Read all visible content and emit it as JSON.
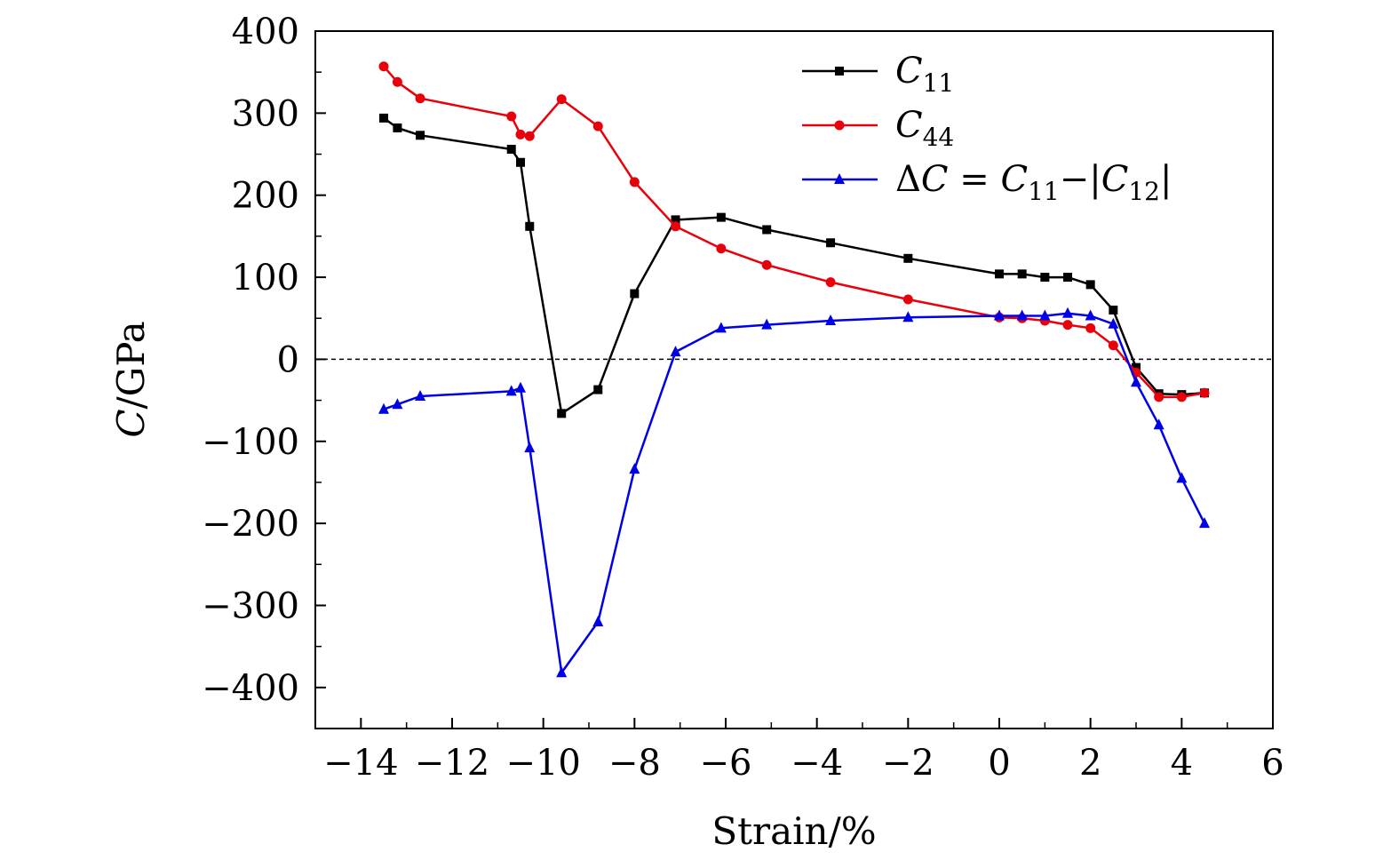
{
  "chart_data": {
    "type": "line",
    "title": "",
    "xlabel": "Strain/%",
    "ylabel": "C/GPa",
    "xlim": [
      -15,
      6
    ],
    "ylim": [
      -450,
      400
    ],
    "xticks": [
      -14,
      -12,
      -10,
      -8,
      -6,
      -4,
      -2,
      0,
      2,
      4,
      6
    ],
    "yticks": [
      400,
      300,
      200,
      100,
      0,
      -100,
      -200,
      -300,
      -400
    ],
    "xtick_labels": [
      "−14",
      "−12",
      "−10",
      "−8",
      "−6",
      "−4",
      "−2",
      "0",
      "2",
      "4",
      "6"
    ],
    "ytick_labels": [
      "400",
      "300",
      "200",
      "100",
      "0",
      "−100",
      "−200",
      "−300",
      "−400"
    ],
    "reference_line": {
      "y": 0,
      "style": "dashed"
    },
    "legend_position": "top-right",
    "series": [
      {
        "name": "C11",
        "color": "#000000",
        "marker": "square",
        "x": [
          -13.5,
          -13.2,
          -12.7,
          -10.7,
          -10.5,
          -10.3,
          -9.6,
          -8.8,
          -8.0,
          -7.1,
          -6.1,
          -5.1,
          -3.7,
          -2.0,
          0.0,
          0.5,
          1.0,
          1.5,
          2.0,
          2.5,
          3.0,
          3.5,
          4.0,
          4.5
        ],
        "y": [
          294,
          282,
          273,
          256,
          240,
          162,
          -66,
          -37,
          80,
          170,
          173,
          158,
          142,
          123,
          104,
          104,
          100,
          100,
          91,
          60,
          -10,
          -42,
          -43,
          -41
        ]
      },
      {
        "name": "C44",
        "color": "#e8000b",
        "marker": "circle",
        "x": [
          -13.5,
          -13.2,
          -12.7,
          -10.7,
          -10.5,
          -10.3,
          -9.6,
          -8.8,
          -8.0,
          -7.1,
          -6.1,
          -5.1,
          -3.7,
          -2.0,
          0.0,
          0.5,
          1.0,
          1.5,
          2.0,
          2.5,
          3.0,
          3.5,
          4.0,
          4.5
        ],
        "y": [
          357,
          338,
          318,
          296,
          274,
          272,
          317,
          284,
          216,
          162,
          135,
          115,
          94,
          73,
          51,
          50,
          47,
          42,
          38,
          17,
          -16,
          -46,
          -46,
          -41
        ]
      },
      {
        "name": "ΔC = C11 − |C12|",
        "color": "#0000e8",
        "marker": "triangle",
        "x": [
          -13.5,
          -13.2,
          -12.7,
          -10.7,
          -10.5,
          -10.3,
          -9.6,
          -8.8,
          -8.0,
          -7.1,
          -6.1,
          -5.1,
          -3.7,
          -2.0,
          0.0,
          0.5,
          1.0,
          1.5,
          2.0,
          2.5,
          3.0,
          3.5,
          4.0,
          4.5
        ],
        "y": [
          -61,
          -55,
          -45,
          -39,
          -35,
          -108,
          -382,
          -320,
          -134,
          9,
          38,
          42,
          47,
          51,
          53,
          53,
          53,
          56,
          53,
          43,
          -28,
          -80,
          -145,
          -200
        ]
      }
    ],
    "legend": {
      "entries": [
        {
          "main": "C",
          "sub": "11"
        },
        {
          "main": "C",
          "sub": "44"
        },
        {
          "delta": "Δ",
          "main": "C",
          "eq": " = ",
          "c11": "C",
          "c11sub": "11",
          "minus": "−|",
          "c12": "C",
          "c12sub": "12",
          "close": "|"
        }
      ]
    }
  }
}
